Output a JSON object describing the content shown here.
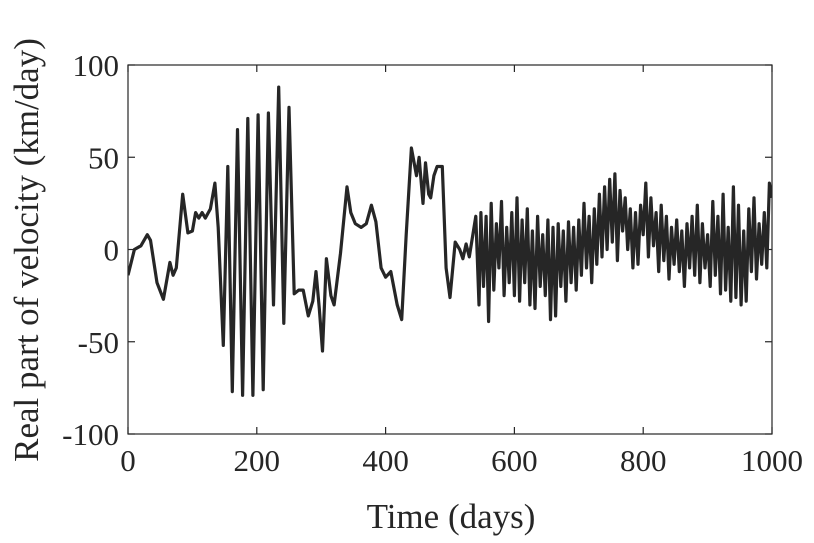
{
  "chart_data": {
    "type": "line",
    "title": "",
    "xlabel": "Time (days)",
    "ylabel": "Real part of velocity (km/day)",
    "xlim": [
      0,
      1000
    ],
    "ylim": [
      -100,
      100
    ],
    "xticks": [
      0,
      200,
      400,
      600,
      800,
      1000
    ],
    "yticks": [
      -100,
      -50,
      0,
      50,
      100
    ],
    "xtick_labels": [
      "0",
      "200",
      "400",
      "600",
      "800",
      "1000"
    ],
    "ytick_labels": [
      "-100",
      "-50",
      "0",
      "50",
      "100"
    ],
    "grid": false,
    "line_color": "#262626",
    "series": [
      {
        "x": [
          0,
          10,
          20,
          30,
          35,
          45,
          55,
          65,
          70,
          75,
          85,
          93,
          100,
          105,
          110,
          115,
          120,
          128,
          135,
          140,
          148,
          155,
          162,
          170,
          178,
          186,
          194,
          202,
          210,
          218,
          226,
          234,
          242,
          250,
          258,
          265,
          272,
          280,
          287,
          292,
          297,
          302,
          308,
          315,
          320,
          330,
          340,
          346,
          353,
          362,
          370,
          378,
          385,
          393,
          400,
          408,
          418,
          425,
          432,
          440,
          448,
          452,
          458,
          462,
          467,
          470,
          475,
          480,
          488,
          494,
          500,
          508,
          515,
          520,
          525,
          530,
          540,
          545,
          548,
          552,
          556,
          560,
          564,
          568,
          572,
          576,
          580,
          584,
          588,
          592,
          596,
          600,
          604,
          608,
          612,
          616,
          620,
          624,
          628,
          632,
          636,
          640,
          644,
          648,
          652,
          656,
          660,
          664,
          668,
          672,
          676,
          680,
          684,
          688,
          692,
          696,
          700,
          704,
          708,
          712,
          716,
          720,
          724,
          728,
          732,
          736,
          740,
          744,
          748,
          752,
          756,
          760,
          764,
          768,
          772,
          776,
          780,
          784,
          788,
          792,
          796,
          800,
          804,
          808,
          812,
          816,
          820,
          824,
          828,
          832,
          836,
          840,
          844,
          848,
          852,
          856,
          860,
          864,
          868,
          872,
          876,
          880,
          884,
          888,
          892,
          896,
          900,
          904,
          908,
          912,
          916,
          920,
          924,
          928,
          932,
          936,
          940,
          944,
          948,
          952,
          956,
          960,
          964,
          968,
          972,
          976,
          980,
          984,
          988,
          992,
          996,
          1000
        ],
        "values": [
          -14,
          0,
          2,
          8,
          5,
          -18,
          -27,
          -7,
          -14,
          -10,
          30,
          9,
          10,
          20,
          17,
          20,
          17,
          22,
          36,
          12,
          -52,
          45,
          -77,
          65,
          -79,
          71,
          -79,
          73,
          -76,
          74,
          -30,
          88,
          -40,
          77,
          -24,
          -22,
          -22,
          -36,
          -28,
          -12,
          -32,
          -55,
          -5,
          -25,
          -30,
          -2,
          34,
          20,
          14,
          12,
          14,
          24,
          15,
          -10,
          -15,
          -12,
          -30,
          -38,
          8,
          55,
          40,
          50,
          25,
          47,
          30,
          28,
          40,
          45,
          45,
          -10,
          -26,
          4,
          0,
          -5,
          3,
          -4,
          18,
          -30,
          20,
          -20,
          18,
          -39,
          25,
          -22,
          14,
          -10,
          26,
          -25,
          12,
          -18,
          20,
          -25,
          28,
          -28,
          16,
          -18,
          22,
          -30,
          10,
          -32,
          18,
          -20,
          8,
          -25,
          16,
          -38,
          12,
          -36,
          14,
          -20,
          10,
          -28,
          15,
          -18,
          12,
          -22,
          16,
          -14,
          25,
          -10,
          18,
          -18,
          22,
          -8,
          30,
          -4,
          34,
          0,
          38,
          4,
          41,
          -6,
          32,
          10,
          28,
          0,
          22,
          -10,
          20,
          -8,
          24,
          8,
          36,
          -4,
          28,
          2,
          20,
          -12,
          24,
          -6,
          18,
          -16,
          12,
          -8,
          16,
          -12,
          10,
          -20,
          14,
          -10,
          18,
          -14,
          24,
          -18,
          14,
          -10,
          8,
          -20,
          26,
          -14,
          18,
          -24,
          30,
          -22,
          12,
          -28,
          34,
          -26,
          24,
          -30,
          10,
          -28,
          22,
          -12,
          28,
          -16,
          14,
          -8,
          20,
          -10,
          36,
          28
        ]
      }
    ]
  }
}
